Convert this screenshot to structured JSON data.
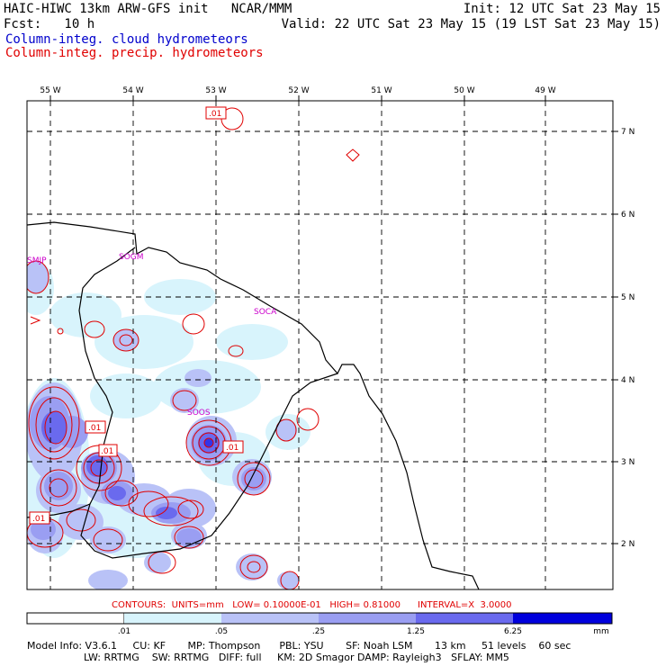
{
  "header": {
    "title": "HAIC-HIWC 13km ARW-GFS init   NCAR/MMM",
    "init": "Init: 12 UTC Sat 23 May 15",
    "fcst": "Fcst:   10 h",
    "valid": "Valid: 22 UTC Sat 23 May 15 (19 LST Sat 23 May 15)",
    "legend_cloud": "Column-integ. cloud hydrometeors",
    "legend_precip": "Column-integ. precip. hydrometeors"
  },
  "map": {
    "lon_labels": [
      "55 W",
      "54 W",
      "53 W",
      "52 W",
      "51 W",
      "50 W",
      "49 W"
    ],
    "lat_labels": [
      "7 N",
      "6 N",
      "5 N",
      "4 N",
      "3 N",
      "2 N"
    ],
    "stations": [
      "SMJP",
      "SOGM",
      "SOCA",
      "SOOS"
    ],
    "contour_labels": [
      ".01",
      ".01",
      ".01",
      ".01",
      ".01"
    ],
    "colors": {
      "precip_contour": "#e00000",
      "cloud_1": "#d8f4fc",
      "cloud_2": "#b9c2f7",
      "cloud_3": "#9a9ef2",
      "cloud_4": "#6a6aee",
      "cloud_5": "#3434e8",
      "cloud_6": "#0000dd",
      "coast": "#000000"
    }
  },
  "contour_info": "CONTOURS:  UNITS=mm   LOW= 0.10000E-01   HIGH= 0.81000      INTERVAL=X  3.0000",
  "colorbar": {
    "ticks": [
      ".01",
      ".05",
      ".25",
      "1.25",
      "6.25"
    ],
    "unit": "mm"
  },
  "footer": {
    "line1": "Model Info: V3.6.1     CU: KF       MP: Thompson      PBL: YSU       SF: Noah LSM       13 km     51 levels    60 sec",
    "line2": "                  LW: RRTMG    SW: RRTMG   DIFF: full     KM: 2D Smagor DAMP: Rayleigh3   SFLAY: MM5"
  }
}
